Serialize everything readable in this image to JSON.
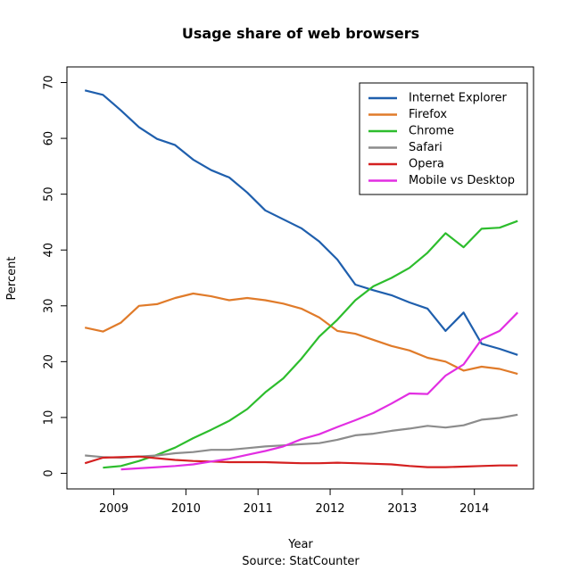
{
  "chart_data": {
    "type": "line",
    "title": "Usage share of web browsers",
    "x_label": "Year",
    "y_label": "Percent",
    "caption": "Source: StatCounter",
    "x": [
      2008.6,
      2008.85,
      2009.1,
      2009.35,
      2009.6,
      2009.85,
      2010.1,
      2010.35,
      2010.6,
      2010.85,
      2011.1,
      2011.35,
      2011.6,
      2011.85,
      2012.1,
      2012.35,
      2012.6,
      2012.85,
      2013.1,
      2013.35,
      2013.6,
      2013.85,
      2014.1,
      2014.35,
      2014.6
    ],
    "series": [
      {
        "name": "Internet Explorer",
        "color": "#1f5fad",
        "values": [
          68.6,
          67.8,
          65.0,
          62.0,
          59.9,
          58.8,
          56.2,
          54.3,
          53.0,
          50.3,
          47.1,
          45.5,
          43.9,
          41.5,
          38.3,
          33.8,
          32.8,
          31.9,
          30.6,
          29.5,
          25.5,
          28.8,
          23.2,
          22.3,
          21.2
        ]
      },
      {
        "name": "Firefox",
        "color": "#e07b2a",
        "values": [
          26.1,
          25.4,
          27.0,
          30.0,
          30.3,
          31.4,
          32.2,
          31.7,
          31.0,
          31.4,
          31.0,
          30.4,
          29.5,
          27.9,
          25.5,
          25.0,
          23.9,
          22.8,
          22.0,
          20.7,
          20.0,
          18.4,
          19.1,
          18.7,
          17.8
        ]
      },
      {
        "name": "Chrome",
        "color": "#2dbd2d",
        "values": [
          null,
          1.0,
          1.3,
          2.2,
          3.3,
          4.6,
          6.3,
          7.8,
          9.4,
          11.5,
          14.5,
          17.0,
          20.5,
          24.5,
          27.5,
          31.0,
          33.5,
          35.0,
          36.8,
          39.5,
          43.0,
          40.5,
          43.8,
          44.0,
          45.2
        ]
      },
      {
        "name": "Safari",
        "color": "#8c8c8c",
        "values": [
          3.2,
          2.9,
          2.8,
          3.0,
          3.2,
          3.6,
          3.8,
          4.2,
          4.2,
          4.5,
          4.8,
          5.0,
          5.2,
          5.4,
          6.0,
          6.8,
          7.1,
          7.6,
          8.0,
          8.5,
          8.2,
          8.6,
          9.6,
          9.9,
          10.5
        ]
      },
      {
        "name": "Opera",
        "color": "#d42020",
        "values": [
          1.8,
          2.8,
          2.9,
          3.0,
          2.7,
          2.4,
          2.2,
          2.1,
          2.0,
          2.0,
          2.0,
          1.9,
          1.8,
          1.8,
          1.9,
          1.8,
          1.7,
          1.6,
          1.3,
          1.1,
          1.1,
          1.2,
          1.3,
          1.4,
          1.4
        ]
      },
      {
        "name": "Mobile vs Desktop",
        "color": "#e22ee2",
        "values": [
          null,
          null,
          0.7,
          0.9,
          1.1,
          1.3,
          1.6,
          2.1,
          2.6,
          3.3,
          4.0,
          4.8,
          6.1,
          7.0,
          8.3,
          9.5,
          10.8,
          12.5,
          14.3,
          14.2,
          17.5,
          19.5,
          24.0,
          25.5,
          28.8
        ]
      }
    ],
    "xlim": [
      2008.35,
      2014.82
    ],
    "ylim": [
      -2.8,
      72.8
    ],
    "xticks": [
      2009,
      2010,
      2011,
      2012,
      2013,
      2014
    ],
    "yticks": [
      0,
      10,
      20,
      30,
      40,
      50,
      60,
      70
    ],
    "legend": "top-right"
  }
}
